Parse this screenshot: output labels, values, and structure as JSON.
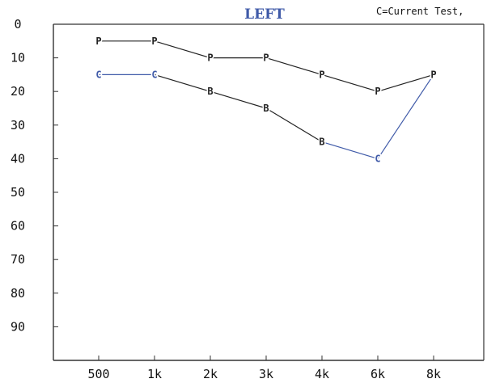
{
  "chart_data": {
    "type": "line",
    "title": "LEFT",
    "legend_text": "C=Current Test,",
    "categories": [
      "500",
      "1k",
      "2k",
      "3k",
      "4k",
      "6k",
      "8k"
    ],
    "y_ticks": [
      0,
      10,
      20,
      30,
      40,
      50,
      60,
      70,
      80,
      90
    ],
    "ylim": [
      0,
      100
    ],
    "y_inverted": true,
    "grid": false,
    "series": [
      {
        "name": "P",
        "color": "#222222",
        "points": [
          {
            "x": "500",
            "y": 5,
            "label": "P"
          },
          {
            "x": "1k",
            "y": 5,
            "label": "P"
          },
          {
            "x": "2k",
            "y": 10,
            "label": "P"
          },
          {
            "x": "3k",
            "y": 10,
            "label": "P"
          },
          {
            "x": "4k",
            "y": 15,
            "label": "P"
          },
          {
            "x": "6k",
            "y": 20,
            "label": "P"
          },
          {
            "x": "8k",
            "y": 15,
            "label": "P"
          }
        ]
      },
      {
        "name": "C",
        "color": "#3f5aa8",
        "points": [
          {
            "x": "500",
            "y": 15,
            "label": "C"
          },
          {
            "x": "1k",
            "y": 15,
            "label": "C"
          },
          {
            "x": "2k",
            "y": 20,
            "label": "B"
          },
          {
            "x": "3k",
            "y": 25,
            "label": "B"
          },
          {
            "x": "4k",
            "y": 35,
            "label": "B"
          },
          {
            "x": "6k",
            "y": 40,
            "label": "C"
          },
          {
            "x": "8k",
            "y": 15,
            "label": "P"
          }
        ],
        "segment_colors": [
          "#3f5aa8",
          "#222222",
          "#222222",
          "#222222",
          "#3f5aa8",
          "#3f5aa8"
        ],
        "label_colors": [
          "#3f5aa8",
          "#3f5aa8",
          "#222222",
          "#222222",
          "#222222",
          "#3f5aa8",
          "#222222"
        ]
      }
    ]
  }
}
